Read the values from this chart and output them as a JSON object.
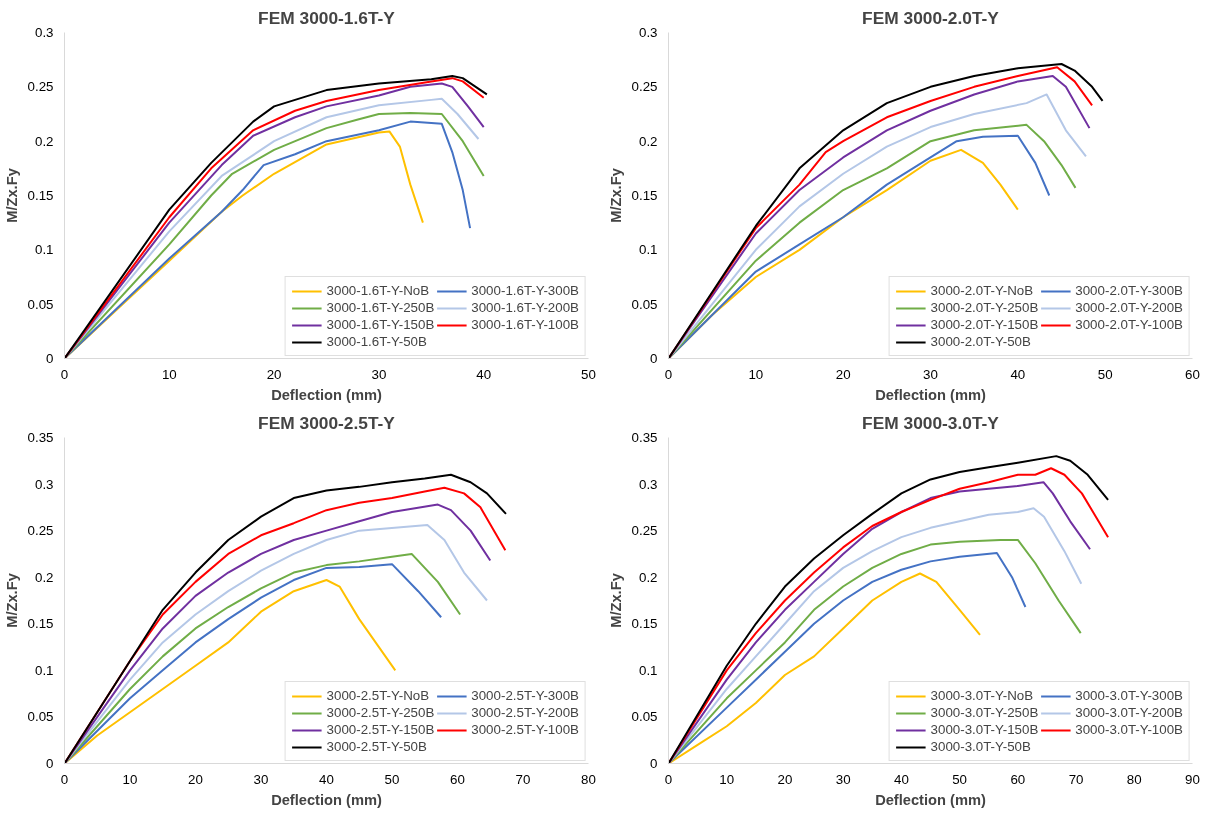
{
  "chart_data": [
    {
      "type": "line",
      "title": "FEM 3000-1.6T-Y",
      "xlabel": "Deflection (mm)",
      "ylabel": "M/Zx.Fy",
      "xlim": [
        0,
        50
      ],
      "xticks": [
        0,
        10,
        20,
        30,
        40,
        50
      ],
      "ylim": [
        0,
        0.3
      ],
      "yticks": [
        0,
        0.05,
        0.1,
        0.15,
        0.2,
        0.25,
        0.3
      ],
      "grid": false,
      "legend": "bottom right",
      "line_style": "solid",
      "series": [
        {
          "name": "3000-1.6T-Y-NoB",
          "color": "#ffc000",
          "x": [
            0,
            5,
            10,
            15,
            17,
            20,
            25,
            30,
            31,
            32,
            33,
            34.2
          ],
          "values": [
            0,
            0.045,
            0.09,
            0.135,
            0.15,
            0.17,
            0.197,
            0.208,
            0.209,
            0.195,
            0.16,
            0.125
          ]
        },
        {
          "name": "3000-1.6T-Y-300B",
          "color": "#4472c4",
          "x": [
            0,
            10,
            15,
            17,
            19,
            22,
            25,
            30,
            33,
            36,
            37,
            38,
            38.7
          ],
          "values": [
            0,
            0.092,
            0.135,
            0.155,
            0.178,
            0.188,
            0.2,
            0.21,
            0.218,
            0.216,
            0.19,
            0.155,
            0.12
          ]
        },
        {
          "name": "3000-1.6T-Y-250B",
          "color": "#70ad47",
          "x": [
            0,
            10,
            14,
            16,
            20,
            25,
            28,
            30,
            33,
            36,
            38,
            40
          ],
          "values": [
            0,
            0.105,
            0.15,
            0.17,
            0.192,
            0.212,
            0.22,
            0.225,
            0.226,
            0.225,
            0.2,
            0.168
          ]
        },
        {
          "name": "3000-1.6T-Y-200B",
          "color": "#b4c7e7",
          "x": [
            0,
            10,
            15,
            20,
            25,
            30,
            35,
            36,
            37.5,
            39.5
          ],
          "values": [
            0,
            0.117,
            0.168,
            0.2,
            0.222,
            0.233,
            0.238,
            0.239,
            0.225,
            0.202
          ]
        },
        {
          "name": "3000-1.6T-Y-150B",
          "color": "#7030a0",
          "x": [
            0,
            10,
            15,
            18,
            22,
            25,
            30,
            33,
            36,
            37,
            38.5,
            40
          ],
          "values": [
            0,
            0.125,
            0.178,
            0.205,
            0.222,
            0.232,
            0.242,
            0.25,
            0.253,
            0.25,
            0.232,
            0.213
          ]
        },
        {
          "name": "3000-1.6T-Y-100B",
          "color": "#ff0000",
          "x": [
            0,
            10,
            14,
            18,
            22,
            25,
            30,
            35,
            37,
            38,
            40
          ],
          "values": [
            0,
            0.13,
            0.175,
            0.21,
            0.228,
            0.237,
            0.247,
            0.255,
            0.258,
            0.255,
            0.24
          ]
        },
        {
          "name": "3000-1.6T-Y-50B",
          "color": "#000000",
          "x": [
            0,
            10,
            14,
            18,
            20,
            25,
            30,
            35,
            37,
            38,
            40.3
          ],
          "values": [
            0,
            0.137,
            0.18,
            0.218,
            0.232,
            0.247,
            0.253,
            0.257,
            0.26,
            0.258,
            0.243
          ]
        }
      ]
    },
    {
      "type": "line",
      "title": "FEM 3000-2.0T-Y",
      "xlabel": "Deflection (mm)",
      "ylabel": "M/Zx.Fy",
      "xlim": [
        0,
        60
      ],
      "xticks": [
        0,
        10,
        20,
        30,
        40,
        50,
        60
      ],
      "ylim": [
        0,
        0.3
      ],
      "yticks": [
        0,
        0.05,
        0.1,
        0.15,
        0.2,
        0.25,
        0.3
      ],
      "grid": false,
      "legend": "bottom right",
      "line_style": "solid",
      "series": [
        {
          "name": "3000-2.0T-Y-NoB",
          "color": "#ffc000",
          "x": [
            0,
            5,
            10,
            15,
            20,
            25,
            30,
            33.5,
            36,
            38,
            40
          ],
          "values": [
            0,
            0.04,
            0.075,
            0.1,
            0.13,
            0.155,
            0.182,
            0.192,
            0.18,
            0.16,
            0.137
          ]
        },
        {
          "name": "3000-2.0T-Y-300B",
          "color": "#4472c4",
          "x": [
            0,
            10,
            15,
            20,
            25,
            30,
            33,
            36,
            40,
            42,
            43.6
          ],
          "values": [
            0,
            0.08,
            0.105,
            0.13,
            0.16,
            0.185,
            0.2,
            0.204,
            0.205,
            0.18,
            0.15
          ]
        },
        {
          "name": "3000-2.0T-Y-250B",
          "color": "#70ad47",
          "x": [
            0,
            10,
            15,
            20,
            25,
            30,
            35,
            41,
            43,
            45,
            46.6
          ],
          "values": [
            0,
            0.09,
            0.125,
            0.155,
            0.175,
            0.2,
            0.21,
            0.215,
            0.2,
            0.178,
            0.157
          ]
        },
        {
          "name": "3000-2.0T-Y-200B",
          "color": "#b4c7e7",
          "x": [
            0,
            10,
            15,
            20,
            25,
            30,
            35,
            41,
            43.3,
            45.5,
            47.8
          ],
          "values": [
            0,
            0.1,
            0.14,
            0.17,
            0.195,
            0.213,
            0.225,
            0.235,
            0.243,
            0.21,
            0.186
          ]
        },
        {
          "name": "3000-2.0T-Y-150B",
          "color": "#7030a0",
          "x": [
            0,
            10,
            15,
            20,
            25,
            30,
            35,
            40,
            44,
            45.5,
            48.2
          ],
          "values": [
            0,
            0.115,
            0.155,
            0.185,
            0.21,
            0.228,
            0.243,
            0.255,
            0.26,
            0.25,
            0.212
          ]
        },
        {
          "name": "3000-2.0T-Y-100B",
          "color": "#ff0000",
          "x": [
            0,
            10,
            15,
            18,
            20,
            25,
            30,
            35,
            40,
            44.5,
            46.5,
            48.5
          ],
          "values": [
            0,
            0.12,
            0.16,
            0.19,
            0.2,
            0.222,
            0.237,
            0.25,
            0.26,
            0.268,
            0.255,
            0.233
          ]
        },
        {
          "name": "3000-2.0T-Y-50B",
          "color": "#000000",
          "x": [
            0,
            10,
            15,
            20,
            25,
            30,
            35,
            40,
            45,
            46.5,
            48.5,
            49.7
          ],
          "values": [
            0,
            0.122,
            0.175,
            0.21,
            0.235,
            0.25,
            0.26,
            0.267,
            0.271,
            0.265,
            0.25,
            0.237
          ]
        }
      ]
    },
    {
      "type": "line",
      "title": "FEM 3000-2.5T-Y",
      "xlabel": "Deflection (mm)",
      "ylabel": "M/Zx.Fy",
      "xlim": [
        0,
        80
      ],
      "xticks": [
        0,
        10,
        20,
        30,
        40,
        50,
        60,
        70,
        80
      ],
      "ylim": [
        0,
        0.35
      ],
      "yticks": [
        0,
        0.05,
        0.1,
        0.15,
        0.2,
        0.25,
        0.3,
        0.35
      ],
      "grid": false,
      "legend": "bottom right",
      "line_style": "solid",
      "series": [
        {
          "name": "3000-2.5T-Y-NoB",
          "color": "#ffc000",
          "x": [
            0,
            5,
            10,
            15,
            20,
            25,
            30,
            35,
            40,
            42,
            45,
            50.5
          ],
          "values": [
            0,
            0.03,
            0.055,
            0.08,
            0.105,
            0.13,
            0.163,
            0.185,
            0.197,
            0.19,
            0.155,
            0.1
          ]
        },
        {
          "name": "3000-2.5T-Y-300B",
          "color": "#4472c4",
          "x": [
            0,
            10,
            15,
            20,
            25,
            30,
            35,
            40,
            45,
            50,
            54,
            57.5
          ],
          "values": [
            0,
            0.07,
            0.1,
            0.13,
            0.155,
            0.178,
            0.197,
            0.21,
            0.211,
            0.214,
            0.185,
            0.157
          ]
        },
        {
          "name": "3000-2.5T-Y-250B",
          "color": "#70ad47",
          "x": [
            0,
            10,
            15,
            20,
            25,
            30,
            35,
            40,
            45,
            50,
            53,
            57,
            60.4
          ],
          "values": [
            0,
            0.08,
            0.115,
            0.145,
            0.168,
            0.188,
            0.205,
            0.213,
            0.217,
            0.222,
            0.225,
            0.195,
            0.16
          ]
        },
        {
          "name": "3000-2.5T-Y-200B",
          "color": "#b4c7e7",
          "x": [
            0,
            10,
            15,
            20,
            25,
            30,
            35,
            40,
            45,
            55.4,
            58,
            61,
            64.5
          ],
          "values": [
            0,
            0.09,
            0.13,
            0.16,
            0.185,
            0.207,
            0.225,
            0.24,
            0.25,
            0.256,
            0.24,
            0.205,
            0.175
          ]
        },
        {
          "name": "3000-2.5T-Y-150B",
          "color": "#7030a0",
          "x": [
            0,
            10,
            15,
            20,
            25,
            30,
            35,
            40,
            45,
            50,
            57,
            59,
            62,
            65
          ],
          "values": [
            0,
            0.1,
            0.145,
            0.18,
            0.205,
            0.225,
            0.24,
            0.25,
            0.26,
            0.27,
            0.278,
            0.272,
            0.25,
            0.218
          ]
        },
        {
          "name": "3000-2.5T-Y-100B",
          "color": "#ff0000",
          "x": [
            0,
            10,
            15,
            20,
            25,
            30,
            35,
            40,
            45,
            50,
            55,
            58,
            61,
            63.5,
            67.3
          ],
          "values": [
            0,
            0.11,
            0.16,
            0.195,
            0.225,
            0.245,
            0.258,
            0.272,
            0.28,
            0.285,
            0.292,
            0.296,
            0.29,
            0.275,
            0.229
          ]
        },
        {
          "name": "3000-2.5T-Y-50B",
          "color": "#000000",
          "x": [
            0,
            10,
            15,
            20,
            25,
            30,
            35,
            40,
            45,
            50,
            55,
            59,
            62,
            64.5,
            67.4
          ],
          "values": [
            0,
            0.11,
            0.165,
            0.205,
            0.24,
            0.265,
            0.285,
            0.293,
            0.297,
            0.302,
            0.306,
            0.31,
            0.302,
            0.29,
            0.268
          ]
        }
      ]
    },
    {
      "type": "line",
      "title": "FEM 3000-3.0T-Y",
      "xlabel": "Deflection (mm)",
      "ylabel": "M/Zx.Fy",
      "xlim": [
        0,
        90
      ],
      "xticks": [
        0,
        10,
        20,
        30,
        40,
        50,
        60,
        70,
        80,
        90
      ],
      "ylim": [
        0,
        0.35
      ],
      "yticks": [
        0,
        0.05,
        0.1,
        0.15,
        0.2,
        0.25,
        0.3,
        0.35
      ],
      "grid": false,
      "legend": "bottom right",
      "line_style": "solid",
      "series": [
        {
          "name": "3000-3.0T-Y-NoB",
          "color": "#ffc000",
          "x": [
            0,
            5,
            10,
            15,
            20,
            25,
            30,
            35,
            40,
            43.2,
            46,
            50,
            53.5
          ],
          "values": [
            0,
            0.02,
            0.04,
            0.065,
            0.095,
            0.115,
            0.145,
            0.175,
            0.195,
            0.204,
            0.195,
            0.165,
            0.138
          ]
        },
        {
          "name": "3000-3.0T-Y-300B",
          "color": "#4472c4",
          "x": [
            0,
            10,
            15,
            20,
            25,
            30,
            35,
            40,
            45,
            50,
            56.4,
            59,
            61.3
          ],
          "values": [
            0,
            0.06,
            0.09,
            0.12,
            0.15,
            0.175,
            0.195,
            0.208,
            0.217,
            0.222,
            0.226,
            0.2,
            0.168
          ]
        },
        {
          "name": "3000-3.0T-Y-250B",
          "color": "#70ad47",
          "x": [
            0,
            10,
            15,
            20,
            25,
            30,
            35,
            40,
            45,
            50,
            57,
            60,
            63,
            67,
            70.8
          ],
          "values": [
            0,
            0.07,
            0.1,
            0.13,
            0.165,
            0.19,
            0.21,
            0.225,
            0.235,
            0.238,
            0.24,
            0.24,
            0.215,
            0.175,
            0.14
          ]
        },
        {
          "name": "3000-3.0T-Y-200B",
          "color": "#b4c7e7",
          "x": [
            0,
            10,
            15,
            20,
            25,
            30,
            35,
            40,
            45,
            50,
            55,
            60,
            62.7,
            64.5,
            68,
            70.9
          ],
          "values": [
            0,
            0.08,
            0.115,
            0.15,
            0.185,
            0.21,
            0.228,
            0.243,
            0.253,
            0.26,
            0.267,
            0.27,
            0.274,
            0.265,
            0.228,
            0.193
          ]
        },
        {
          "name": "3000-3.0T-Y-150B",
          "color": "#7030a0",
          "x": [
            0,
            10,
            15,
            20,
            25,
            30,
            35,
            40,
            45,
            50,
            55,
            60,
            64.4,
            66,
            69,
            72.4
          ],
          "values": [
            0,
            0.09,
            0.13,
            0.165,
            0.195,
            0.225,
            0.252,
            0.27,
            0.285,
            0.292,
            0.295,
            0.298,
            0.302,
            0.29,
            0.26,
            0.23
          ]
        },
        {
          "name": "3000-3.0T-Y-100B",
          "color": "#ff0000",
          "x": [
            0,
            10,
            15,
            20,
            25,
            30,
            35,
            40,
            45,
            50,
            55,
            60,
            63,
            65.7,
            68,
            71,
            75.5
          ],
          "values": [
            0,
            0.1,
            0.14,
            0.175,
            0.205,
            0.232,
            0.255,
            0.27,
            0.283,
            0.295,
            0.302,
            0.31,
            0.31,
            0.317,
            0.31,
            0.29,
            0.243
          ]
        },
        {
          "name": "3000-3.0T-Y-50B",
          "color": "#000000",
          "x": [
            0,
            10,
            15,
            20,
            25,
            30,
            35,
            40,
            45,
            50,
            55,
            60,
            66.6,
            69,
            72,
            75.5
          ],
          "values": [
            0,
            0.105,
            0.15,
            0.19,
            0.22,
            0.245,
            0.268,
            0.29,
            0.305,
            0.313,
            0.318,
            0.323,
            0.33,
            0.325,
            0.31,
            0.283
          ]
        }
      ]
    }
  ]
}
